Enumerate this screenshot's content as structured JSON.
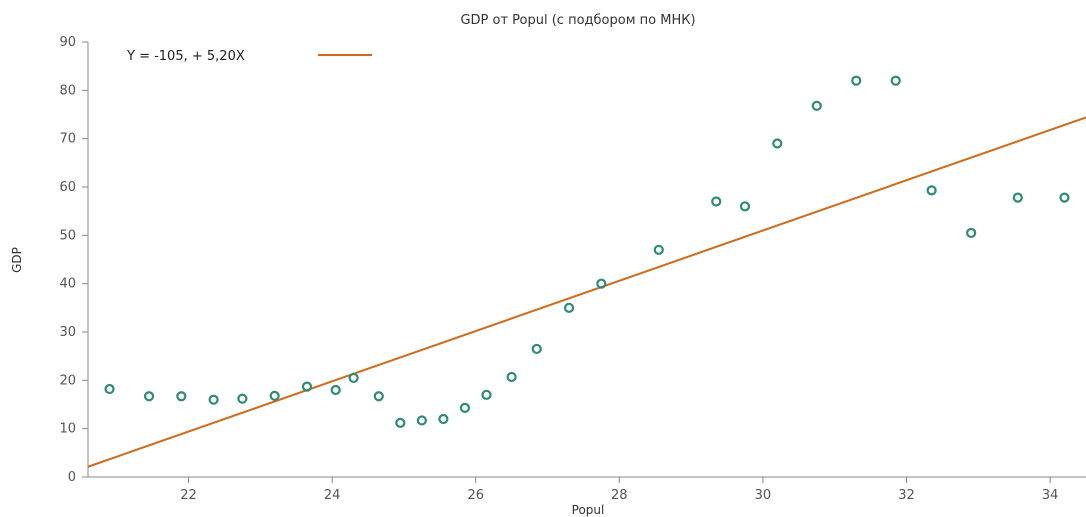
{
  "chart_data": {
    "type": "scatter",
    "title": "GDP от Popul (с подбором по МНК)",
    "xlabel": "Popul",
    "ylabel": "GDP",
    "xlim": [
      20.6,
      34.5
    ],
    "ylim": [
      0,
      90
    ],
    "x_ticks": [
      22,
      24,
      26,
      28,
      30,
      32,
      34
    ],
    "y_ticks": [
      0,
      10,
      20,
      30,
      40,
      50,
      60,
      70,
      80,
      90
    ],
    "grid": false,
    "legend_position": "top-left",
    "colors": {
      "points": "#2e8b74",
      "fit_line": "#d06a1a",
      "axis": "#888888",
      "text": "#333333"
    },
    "fit_line": {
      "label": "Y = -105, + 5,20X",
      "intercept": -105,
      "slope": 5.2
    },
    "series": [
      {
        "x": [
          20.9,
          21.45,
          21.9,
          22.35,
          22.75,
          23.2,
          23.65,
          24.05,
          24.3,
          24.65,
          24.95,
          25.25,
          25.55,
          25.85,
          26.15,
          26.5,
          26.85,
          27.3,
          27.75,
          28.55,
          29.35,
          29.75,
          30.2,
          30.75,
          31.3,
          31.85,
          32.35,
          32.9,
          33.55,
          34.2
        ],
        "y": [
          18.2,
          16.7,
          16.7,
          16,
          16.2,
          16.8,
          18.7,
          18,
          20.5,
          16.7,
          11.2,
          11.7,
          12,
          14.3,
          17,
          20.7,
          26.5,
          35,
          40,
          47,
          57,
          56,
          69,
          76.8,
          82,
          82,
          59.3,
          50.5,
          57.8,
          57.8
        ]
      }
    ]
  }
}
